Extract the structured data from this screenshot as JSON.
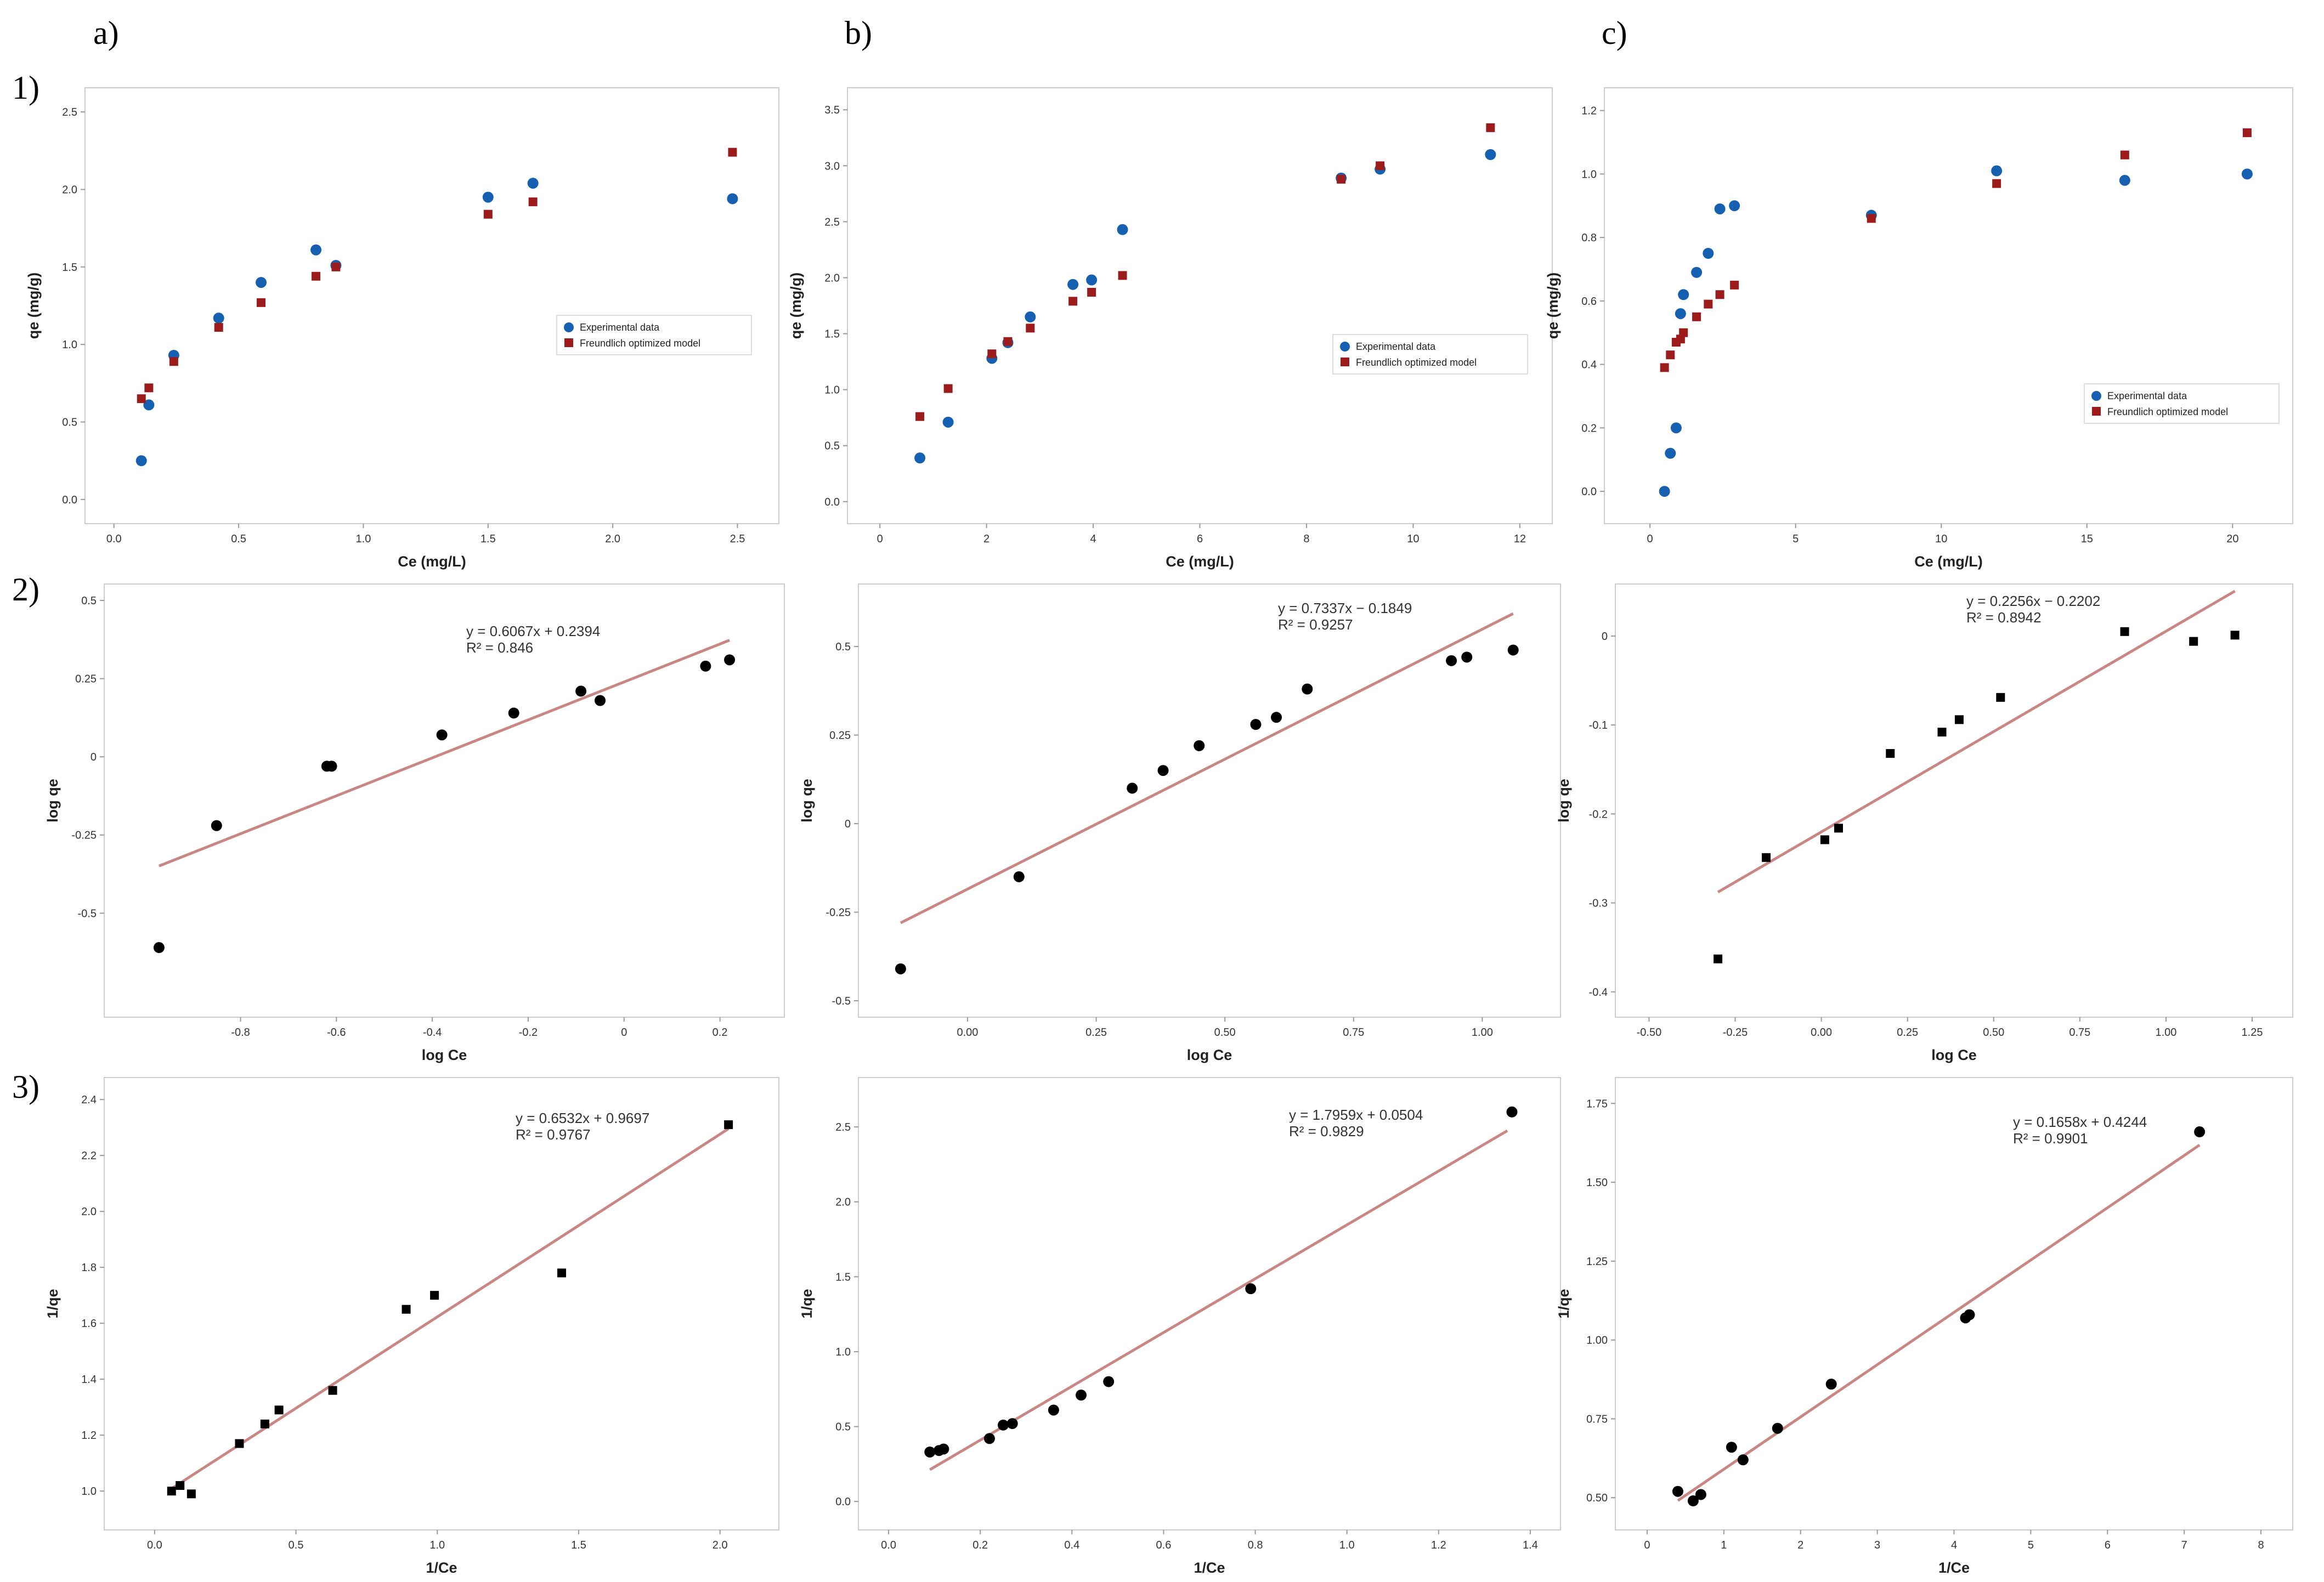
{
  "figure": {
    "column_labels": [
      "a)",
      "b)",
      "c)"
    ],
    "row_labels": [
      "1)",
      "2)",
      "3)"
    ]
  },
  "colors": {
    "experimental": "#1560b0",
    "model": "#9c1c1c",
    "fit_line": "#c98783",
    "points": "#000000",
    "frame": "#cccccc"
  },
  "chart_data": [
    {
      "id": "1a",
      "type": "scatter",
      "xlabel": "Ce (mg/L)",
      "ylabel": "qe (mg/g)",
      "xlim": [
        -0.05,
        2.6
      ],
      "ylim": [
        -0.05,
        2.55
      ],
      "xticks": [
        0.0,
        0.5,
        1.0,
        1.5,
        2.0,
        2.5
      ],
      "xtick_labels": [
        "0.0",
        "0.5",
        "1.0",
        "1.5",
        "2.0",
        "2.5"
      ],
      "yticks": [
        0.0,
        0.5,
        1.0,
        1.5,
        2.0,
        2.5
      ],
      "ytick_labels": [
        "0.0",
        "0.5",
        "1.0",
        "1.5",
        "2.0",
        "2.5"
      ],
      "legend": [
        "Experimental data",
        "Freundlich optimized model"
      ],
      "legend_position": "center-right",
      "series": [
        {
          "name": "Experimental data",
          "marker": "circle",
          "color": "#1560b0",
          "x": [
            0.11,
            0.14,
            0.24,
            0.42,
            0.59,
            0.81,
            0.89,
            1.5,
            1.68,
            2.48
          ],
          "y": [
            0.25,
            0.61,
            0.93,
            1.17,
            1.4,
            1.61,
            1.51,
            1.95,
            2.04,
            1.94
          ]
        },
        {
          "name": "Freundlich optimized model",
          "marker": "square",
          "color": "#9c1c1c",
          "x": [
            0.11,
            0.14,
            0.24,
            0.42,
            0.59,
            0.81,
            0.89,
            1.5,
            1.68,
            2.48
          ],
          "y": [
            0.65,
            0.72,
            0.89,
            1.11,
            1.27,
            1.44,
            1.5,
            1.84,
            1.92,
            2.24
          ]
        }
      ]
    },
    {
      "id": "1b",
      "type": "scatter",
      "xlabel": "Ce (mg/L)",
      "ylabel": "qe (mg/g)",
      "xlim": [
        -0.3,
        12.3
      ],
      "ylim": [
        -0.05,
        3.55
      ],
      "xticks": [
        0,
        2,
        4,
        6,
        8,
        10,
        12
      ],
      "xtick_labels": [
        "0",
        "2",
        "4",
        "6",
        "8",
        "10",
        "12"
      ],
      "yticks": [
        0.0,
        0.5,
        1.0,
        1.5,
        2.0,
        2.5,
        3.0,
        3.5
      ],
      "ytick_labels": [
        "0.0",
        "0.5",
        "1.0",
        "1.5",
        "2.0",
        "2.5",
        "3.0",
        "3.5"
      ],
      "legend": [
        "Experimental data",
        "Freundlich optimized model"
      ],
      "legend_position": "center-right",
      "series": [
        {
          "name": "Experimental data",
          "marker": "circle",
          "color": "#1560b0",
          "x": [
            0.75,
            1.28,
            2.1,
            2.4,
            2.82,
            3.62,
            3.97,
            4.55,
            8.65,
            9.38,
            11.45
          ],
          "y": [
            0.39,
            0.71,
            1.28,
            1.42,
            1.65,
            1.94,
            1.98,
            2.43,
            2.89,
            2.97,
            3.1
          ]
        },
        {
          "name": "Freundlich optimized model",
          "marker": "square",
          "color": "#9c1c1c",
          "x": [
            0.75,
            1.28,
            2.1,
            2.4,
            2.82,
            3.62,
            3.97,
            4.55,
            8.65,
            9.38,
            11.45
          ],
          "y": [
            0.76,
            1.01,
            1.32,
            1.43,
            1.55,
            1.79,
            1.87,
            2.02,
            2.88,
            3.0,
            3.34
          ]
        }
      ]
    },
    {
      "id": "1c",
      "type": "scatter",
      "xlabel": "Ce (mg/L)",
      "ylabel": "qe (mg/g)",
      "xlim": [
        -1.0,
        21.5
      ],
      "ylim": [
        -0.05,
        1.22
      ],
      "xticks": [
        0,
        5,
        10,
        15,
        20
      ],
      "xtick_labels": [
        "0",
        "5",
        "10",
        "15",
        "20"
      ],
      "yticks": [
        0.0,
        0.2,
        0.4,
        0.6,
        0.8,
        1.0,
        1.2
      ],
      "ytick_labels": [
        "0.0",
        "0.2",
        "0.4",
        "0.6",
        "0.8",
        "1.0",
        "1.2"
      ],
      "legend": [
        "Experimental data",
        "Freundlich optimized model"
      ],
      "legend_position": "bottom-right",
      "series": [
        {
          "name": "Experimental data",
          "marker": "circle",
          "color": "#1560b0",
          "x": [
            0.5,
            0.7,
            0.9,
            1.05,
            1.15,
            1.6,
            2.0,
            2.4,
            2.9,
            7.6,
            11.9,
            16.3,
            20.5
          ],
          "y": [
            0.0,
            0.12,
            0.2,
            0.56,
            0.62,
            0.69,
            0.75,
            0.89,
            0.9,
            0.87,
            1.01,
            0.98,
            1.0
          ]
        },
        {
          "name": "Freundlich optimized model",
          "marker": "square",
          "color": "#9c1c1c",
          "x": [
            0.5,
            0.7,
            0.9,
            1.05,
            1.15,
            1.6,
            2.0,
            2.4,
            2.9,
            7.6,
            11.9,
            16.3,
            20.5
          ],
          "y": [
            0.39,
            0.43,
            0.47,
            0.48,
            0.5,
            0.55,
            0.59,
            0.62,
            0.65,
            0.86,
            0.97,
            1.06,
            1.13
          ]
        }
      ]
    },
    {
      "id": "2a",
      "type": "scatter",
      "xlabel": "log Ce",
      "ylabel": "log qe",
      "xlim": [
        -1.05,
        0.3
      ],
      "ylim": [
        -0.78,
        0.5
      ],
      "xticks": [
        -0.8,
        -0.6,
        -0.4,
        -0.2,
        0.0,
        0.2
      ],
      "xtick_labels": [
        "-0.8",
        "-0.6",
        "-0.4",
        "-0.2",
        "0",
        "0.2"
      ],
      "yticks": [
        -0.5,
        -0.25,
        0.0,
        0.25,
        0.5
      ],
      "ytick_labels": [
        "-0.5",
        "-0.25",
        "0",
        "0.25",
        "0.5"
      ],
      "equation": "y = 0.6067x + 0.2394",
      "r2": "R² = 0.846",
      "fit": {
        "slope": 0.6067,
        "intercept": 0.2394,
        "x_range": [
          -0.97,
          0.22
        ]
      },
      "series": [
        {
          "name": "points",
          "marker": "circle",
          "color": "#000000",
          "x": [
            -0.97,
            -0.85,
            -0.62,
            -0.61,
            -0.38,
            -0.23,
            -0.09,
            -0.05,
            0.17,
            0.22
          ],
          "y": [
            -0.61,
            -0.22,
            -0.03,
            -0.03,
            0.07,
            0.14,
            0.21,
            0.18,
            0.29,
            0.31
          ]
        }
      ]
    },
    {
      "id": "2b",
      "type": "scatter",
      "xlabel": "log Ce",
      "ylabel": "log qe",
      "xlim": [
        -0.18,
        1.12
      ],
      "ylim": [
        -0.5,
        0.63
      ],
      "xticks": [
        0.0,
        0.25,
        0.5,
        0.75,
        1.0
      ],
      "xtick_labels": [
        "0.00",
        "0.25",
        "0.50",
        "0.75",
        "1.00"
      ],
      "yticks": [
        -0.5,
        -0.25,
        0.0,
        0.25,
        0.5
      ],
      "ytick_labels": [
        "-0.5",
        "-0.25",
        "0",
        "0.25",
        "0.5"
      ],
      "equation": "y = 0.7337x − 0.1849",
      "r2": "R² = 0.9257",
      "fit": {
        "slope": 0.7337,
        "intercept": -0.1849,
        "x_range": [
          -0.13,
          1.06
        ]
      },
      "series": [
        {
          "name": "points",
          "marker": "circle",
          "color": "#000000",
          "x": [
            -0.13,
            0.1,
            0.32,
            0.38,
            0.45,
            0.56,
            0.6,
            0.66,
            0.94,
            0.97,
            1.06
          ],
          "y": [
            -0.41,
            -0.15,
            0.1,
            0.15,
            0.22,
            0.28,
            0.3,
            0.38,
            0.46,
            0.47,
            0.49
          ]
        }
      ]
    },
    {
      "id": "2c",
      "type": "scatter",
      "xlabel": "log Ce",
      "ylabel": "log qe",
      "xlim": [
        -0.55,
        1.32
      ],
      "ylim": [
        -0.41,
        0.04
      ],
      "xticks": [
        -0.5,
        -0.25,
        0.0,
        0.25,
        0.5,
        0.75,
        1.0,
        1.25
      ],
      "xtick_labels": [
        "-0.50",
        "-0.25",
        "0.00",
        "0.25",
        "0.50",
        "0.75",
        "1.00",
        "1.25"
      ],
      "yticks": [
        -0.4,
        -0.3,
        -0.2,
        -0.1,
        0.0
      ],
      "ytick_labels": [
        "-0.4",
        "-0.3",
        "-0.2",
        "-0.1",
        "0"
      ],
      "equation": "y = 0.2256x − 0.2202",
      "r2": "R² = 0.8942",
      "fit": {
        "slope": 0.2256,
        "intercept": -0.2202,
        "x_range": [
          -0.3,
          1.2
        ]
      },
      "series": [
        {
          "name": "points",
          "marker": "square",
          "color": "#000000",
          "x": [
            -0.3,
            -0.16,
            0.01,
            0.05,
            0.2,
            0.35,
            0.4,
            0.52,
            0.88,
            1.08,
            1.2
          ],
          "y": [
            -0.363,
            -0.249,
            -0.229,
            -0.216,
            -0.132,
            -0.108,
            -0.094,
            -0.069,
            0.005,
            -0.006,
            0.001
          ]
        }
      ]
    },
    {
      "id": "3a",
      "type": "scatter",
      "xlabel": "1/Ce",
      "ylabel": "1/qe",
      "xlim": [
        -0.12,
        2.15
      ],
      "ylim": [
        0.92,
        2.42
      ],
      "xticks": [
        0.0,
        0.5,
        1.0,
        1.5,
        2.0
      ],
      "xtick_labels": [
        "0.0",
        "0.5",
        "1.0",
        "1.5",
        "2.0"
      ],
      "yticks": [
        1.0,
        1.2,
        1.4,
        1.6,
        1.8,
        2.0,
        2.2,
        2.4
      ],
      "ytick_labels": [
        "1.0",
        "1.2",
        "1.4",
        "1.6",
        "1.8",
        "2.0",
        "2.2",
        "2.4"
      ],
      "equation": "y = 0.6532x + 0.9697",
      "r2": "R² = 0.9767",
      "fit": {
        "slope": 0.6532,
        "intercept": 0.9697,
        "x_range": [
          0.06,
          2.03
        ]
      },
      "series": [
        {
          "name": "points",
          "marker": "square",
          "color": "#000000",
          "x": [
            0.06,
            0.09,
            0.13,
            0.3,
            0.39,
            0.44,
            0.63,
            0.89,
            0.99,
            1.44,
            2.03
          ],
          "y": [
            1.0,
            1.02,
            0.99,
            1.17,
            1.24,
            1.29,
            1.36,
            1.65,
            1.7,
            1.78,
            2.31
          ]
        }
      ]
    },
    {
      "id": "3b",
      "type": "scatter",
      "xlabel": "1/Ce",
      "ylabel": "1/qe",
      "xlim": [
        -0.03,
        1.43
      ],
      "ylim": [
        -0.08,
        2.72
      ],
      "xticks": [
        0.0,
        0.2,
        0.4,
        0.6,
        0.8,
        1.0,
        1.2,
        1.4
      ],
      "xtick_labels": [
        "0.0",
        "0.2",
        "0.4",
        "0.6",
        "0.8",
        "1.0",
        "1.2",
        "1.4"
      ],
      "yticks": [
        0.0,
        0.5,
        1.0,
        1.5,
        2.0,
        2.5
      ],
      "ytick_labels": [
        "0.0",
        "0.5",
        "1.0",
        "1.5",
        "2.0",
        "2.5"
      ],
      "equation": "y = 1.7959x + 0.0504",
      "r2": "R² = 0.9829",
      "fit": {
        "slope": 1.7959,
        "intercept": 0.0504,
        "x_range": [
          0.09,
          1.35
        ]
      },
      "series": [
        {
          "name": "points",
          "marker": "circle",
          "color": "#000000",
          "x": [
            0.09,
            0.11,
            0.12,
            0.22,
            0.25,
            0.27,
            0.36,
            0.42,
            0.48,
            0.79,
            1.36
          ],
          "y": [
            0.33,
            0.34,
            0.35,
            0.42,
            0.51,
            0.52,
            0.61,
            0.71,
            0.8,
            1.42,
            2.6
          ]
        }
      ]
    },
    {
      "id": "3c",
      "type": "scatter",
      "xlabel": "1/Ce",
      "ylabel": "1/qe",
      "xlim": [
        -0.2,
        8.2
      ],
      "ylim": [
        0.45,
        1.78
      ],
      "xticks": [
        0,
        1,
        2,
        3,
        4,
        5,
        6,
        7,
        8
      ],
      "xtick_labels": [
        "0",
        "1",
        "2",
        "3",
        "4",
        "5",
        "6",
        "7",
        "8"
      ],
      "yticks": [
        0.5,
        0.75,
        1.0,
        1.25,
        1.5,
        1.75
      ],
      "ytick_labels": [
        "0.50",
        "0.75",
        "1.00",
        "1.25",
        "1.50",
        "1.75"
      ],
      "equation": "y = 0.1658x + 0.4244",
      "r2": "R² = 0.9901",
      "fit": {
        "slope": 0.1658,
        "intercept": 0.4244,
        "x_range": [
          0.4,
          7.2
        ]
      },
      "series": [
        {
          "name": "points",
          "marker": "circle",
          "color": "#000000",
          "x": [
            0.4,
            0.6,
            0.7,
            1.1,
            1.25,
            1.7,
            2.4,
            4.15,
            4.2,
            7.2
          ],
          "y": [
            0.52,
            0.49,
            0.51,
            0.66,
            0.62,
            0.72,
            0.86,
            1.07,
            1.08,
            1.66
          ]
        }
      ]
    }
  ]
}
